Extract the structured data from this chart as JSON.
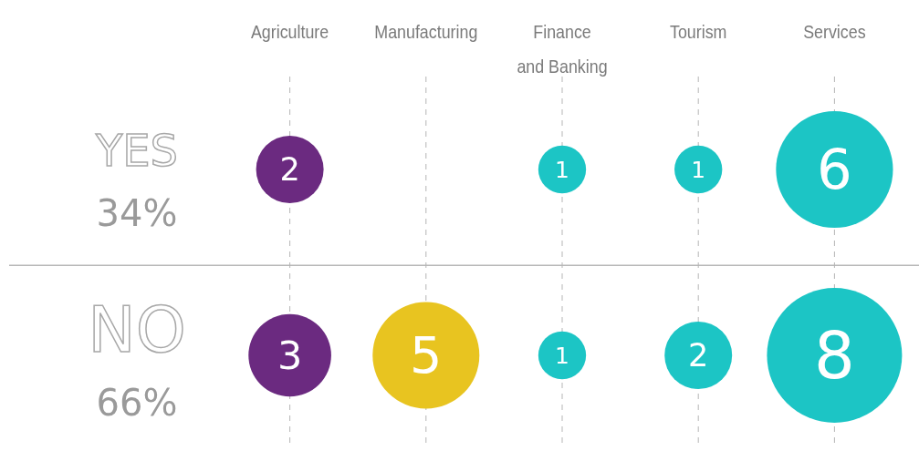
{
  "chart_data": {
    "type": "other",
    "categories": [
      "Agriculture",
      "Manufacturing",
      "Finance and Banking",
      "Tourism",
      "Services"
    ],
    "series": [
      {
        "name": "YES",
        "values": [
          2,
          null,
          1,
          1,
          6
        ],
        "colors": [
          "#6b2a80",
          null,
          "#1cc5c5",
          "#1cc5c5",
          "#1cc5c5"
        ]
      },
      {
        "name": "NO",
        "values": [
          3,
          5,
          1,
          2,
          8
        ],
        "colors": [
          "#6b2a80",
          "#e8c420",
          "#1cc5c5",
          "#1cc5c5",
          "#1cc5c5"
        ]
      }
    ],
    "annotations": [
      "34%",
      "66%"
    ],
    "data_labels": true
  }
}
